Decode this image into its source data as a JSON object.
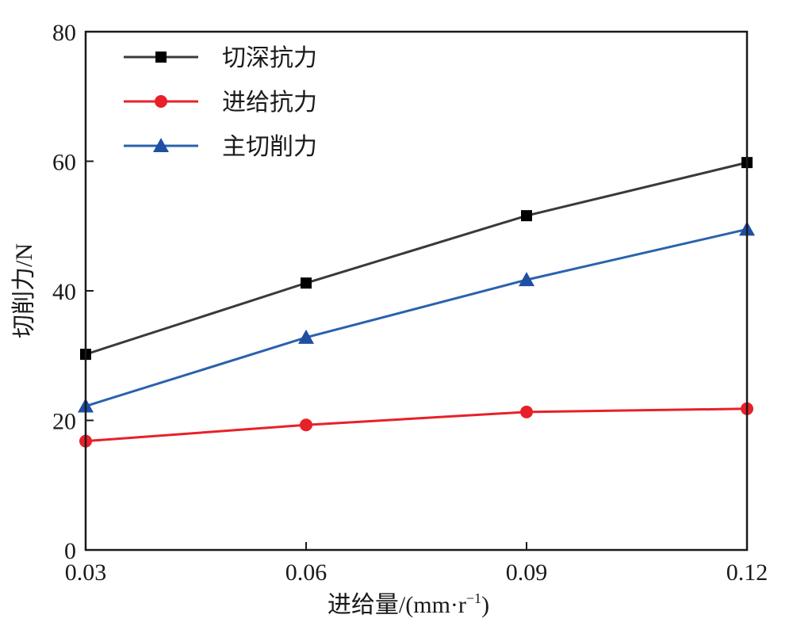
{
  "chart_data": {
    "type": "line",
    "title": "",
    "xlabel": "进给量/(mm·r",
    "xlabel_sup": "−1",
    "xlabel_close": ")",
    "ylabel": "切削力/N",
    "x": [
      0.03,
      0.06,
      0.09,
      0.12
    ],
    "x_tick_labels": [
      "0.03",
      "0.06",
      "0.09",
      "0.12"
    ],
    "y_tick_labels": [
      "0",
      "20",
      "40",
      "60",
      "80"
    ],
    "y_ticks": [
      0,
      20,
      40,
      60,
      80
    ],
    "xlim": [
      0.03,
      0.12
    ],
    "ylim": [
      0,
      80
    ],
    "grid": false,
    "legend_position": "top-left",
    "series": [
      {
        "name": "切深抗力",
        "values": [
          30.2,
          41.2,
          51.6,
          59.8
        ],
        "color": "#3a3a3a",
        "marker_color": "#000000",
        "marker": "square"
      },
      {
        "name": "进给抗力",
        "values": [
          16.8,
          19.3,
          21.3,
          21.8
        ],
        "color": "#e8202a",
        "marker_color": "#e8202a",
        "marker": "circle"
      },
      {
        "name": "主切削力",
        "values": [
          22.2,
          32.8,
          41.7,
          49.5
        ],
        "color": "#2a62ad",
        "marker_color": "#1f4fa3",
        "marker": "triangle"
      }
    ]
  }
}
